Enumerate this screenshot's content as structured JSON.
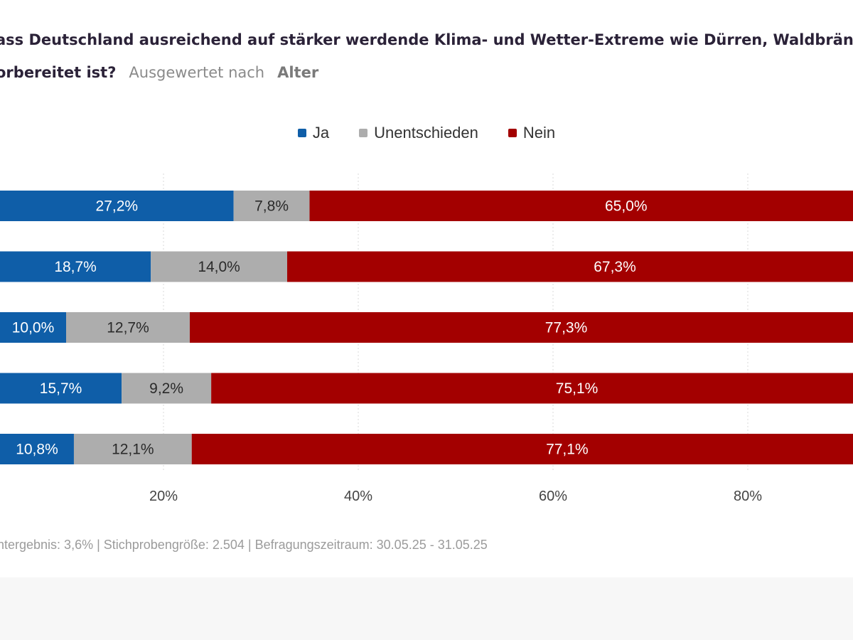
{
  "header": {
    "title_line1": "ass Deutschland ausreichend auf stärker werdende Klima- und Wetter-Extreme wie Dürren, Waldbrän",
    "title_line2": "orbereitet ist?",
    "subtitle_label": "Ausgewertet nach",
    "subtitle_value": "Alter"
  },
  "legend": [
    {
      "label": "Ja",
      "color": "#0f5ea8"
    },
    {
      "label": "Unentschieden",
      "color": "#adadad"
    },
    {
      "label": "Nein",
      "color": "#a30000"
    }
  ],
  "chart_data": {
    "type": "bar",
    "orientation": "horizontal",
    "stacked": true,
    "xlim": [
      0,
      100
    ],
    "x_ticks": [
      20,
      40,
      60,
      80
    ],
    "x_tick_labels": [
      "20%",
      "40%",
      "60%",
      "80%"
    ],
    "grid": true,
    "legend_position": "top-center",
    "categories": [
      "",
      "",
      "",
      "",
      ""
    ],
    "series": [
      {
        "name": "Ja",
        "color": "#0f5ea8",
        "values": [
          27.2,
          18.7,
          10.0,
          15.7,
          10.8
        ],
        "labels": [
          "27,2%",
          "18,7%",
          "10,0%",
          "15,7%",
          "10,8%"
        ]
      },
      {
        "name": "Unentschieden",
        "color": "#adadad",
        "values": [
          7.8,
          14.0,
          12.7,
          9.2,
          12.1
        ],
        "labels": [
          "7,8%",
          "14,0%",
          "12,7%",
          "9,2%",
          "12,1%"
        ]
      },
      {
        "name": "Nein",
        "color": "#a30000",
        "values": [
          65.0,
          67.3,
          77.3,
          75.1,
          77.1
        ],
        "labels": [
          "65,0%",
          "67,3%",
          "77,3%",
          "75,1%",
          "77,1%"
        ]
      }
    ]
  },
  "footer": {
    "note": "ntergebnis: 3,6% | Stichprobengröße: 2.504 | Befragungszeitraum: 30.05.25 - 31.05.25"
  }
}
